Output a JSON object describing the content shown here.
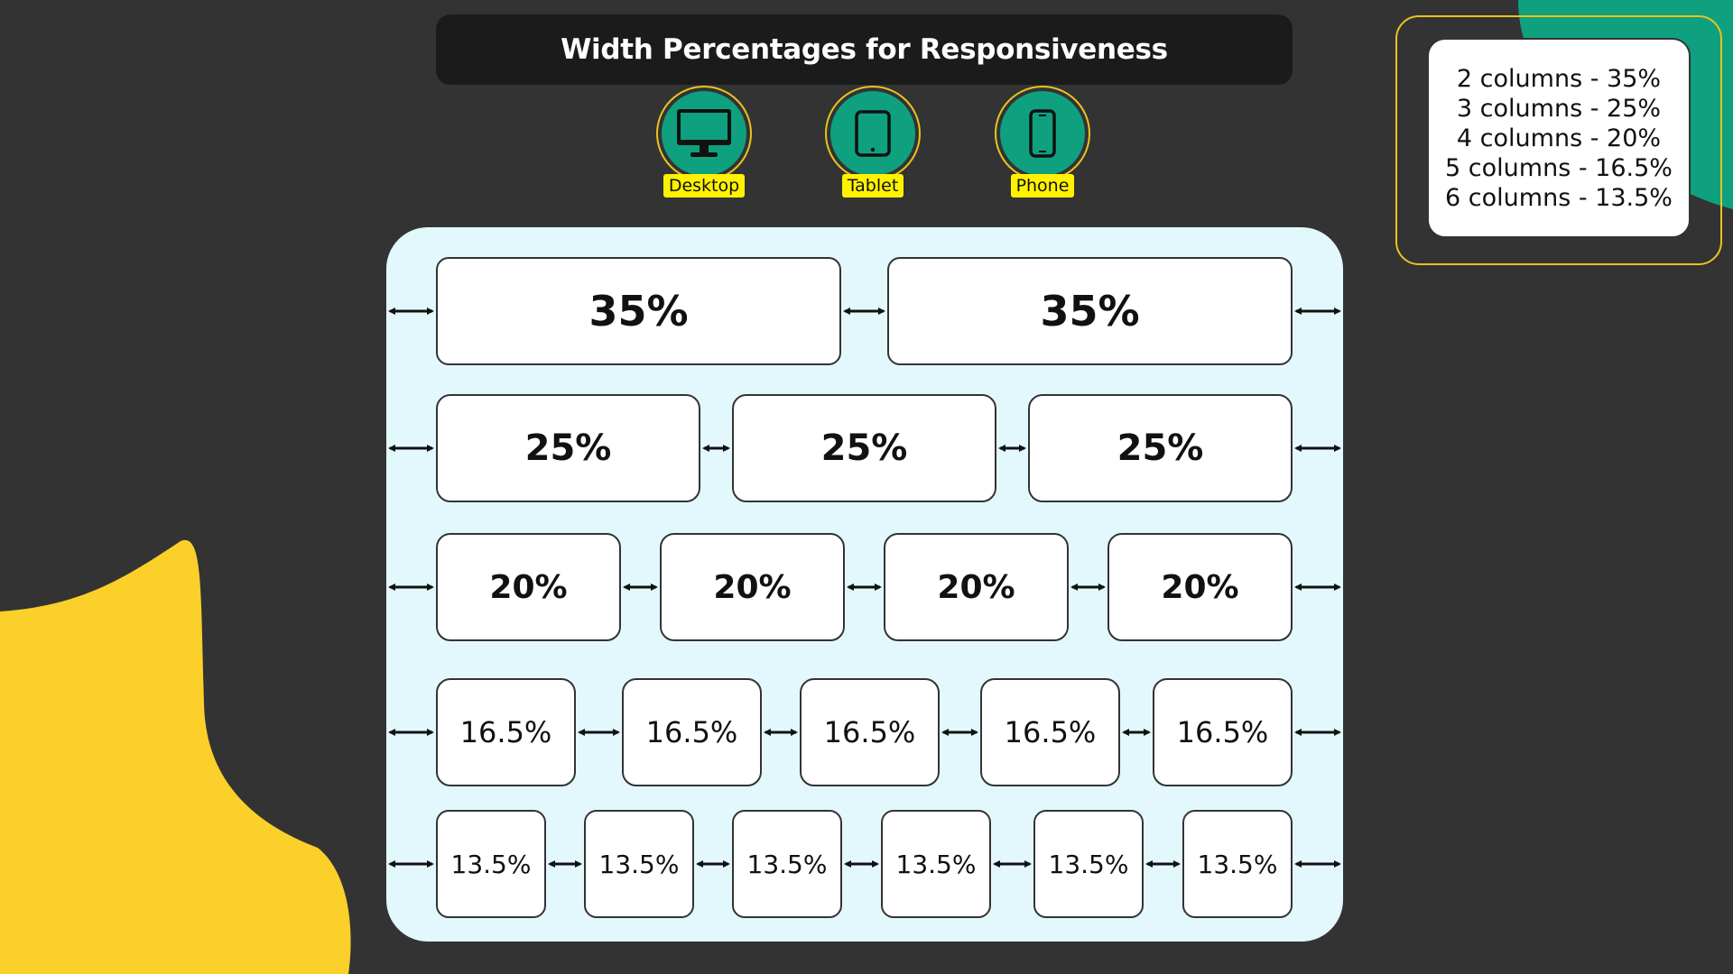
{
  "title": "Width Percentages for Responsiveness",
  "devices": [
    {
      "label": "Desktop",
      "icon": "desktop-monitor-icon"
    },
    {
      "label": "Tablet",
      "icon": "tablet-icon"
    },
    {
      "label": "Phone",
      "icon": "phone-icon"
    }
  ],
  "rows": [
    {
      "columns": 2,
      "label": "35%"
    },
    {
      "columns": 3,
      "label": "25%"
    },
    {
      "columns": 4,
      "label": "20%"
    },
    {
      "columns": 5,
      "label": "16.5%"
    },
    {
      "columns": 6,
      "label": "13.5%"
    }
  ],
  "legend": [
    "2 columns - 35%",
    "3 columns - 25%",
    "4 columns - 20%",
    "5 columns - 16.5%",
    "6 columns - 13.5%"
  ],
  "colors": {
    "background": "#333333",
    "accent_green": "#0fa07f",
    "accent_yellow": "#fbd02a",
    "panel": "#e3f8fd",
    "label_yellow": "#fff200"
  }
}
